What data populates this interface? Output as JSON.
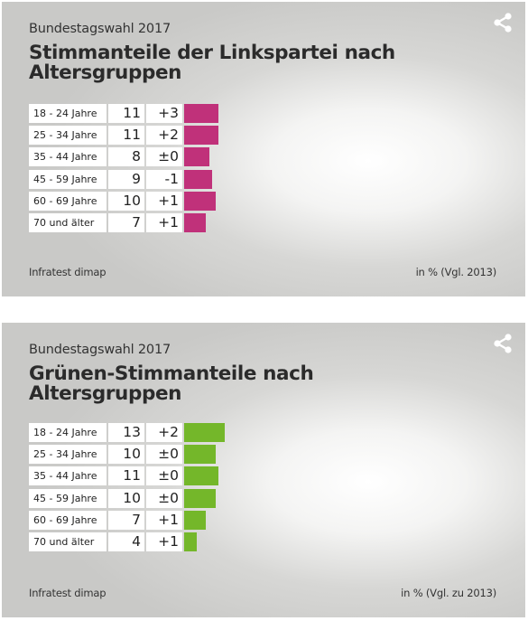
{
  "charts": [
    {
      "subtitle": "Bundestagswahl 2017",
      "title": "Stimmanteile der Linkspartei nach Altersgruppen",
      "source": "Infratest dimap",
      "note": "in % (Vgl. 2013)",
      "icon": "share-icon"
    },
    {
      "subtitle": "Bundestagswahl 2017",
      "title": "Grünen-Stimmanteile nach Altersgruppen",
      "source": "Infratest dimap",
      "note": "in % (Vgl. zu 2013)",
      "icon": "share-icon"
    }
  ],
  "chart_data": [
    {
      "type": "bar",
      "title": "Stimmanteile der Linkspartei nach Altersgruppen",
      "categories": [
        "18 - 24 Jahre",
        "25 - 34 Jahre",
        "35 - 44 Jahre",
        "45 - 59 Jahre",
        "60 - 69 Jahre",
        "70 und älter"
      ],
      "values": [
        11,
        11,
        8,
        9,
        10,
        7
      ],
      "changes": [
        "+3",
        "+2",
        "±0",
        "-1",
        "+1",
        "+1"
      ],
      "color": "#c0317a",
      "orientation": "horizontal"
    },
    {
      "type": "bar",
      "title": "Grünen-Stimmanteile nach Altersgruppen",
      "categories": [
        "18 - 24 Jahre",
        "25 - 34 Jahre",
        "35 - 44 Jahre",
        "45 - 59 Jahre",
        "60 - 69 Jahre",
        "70 und älter"
      ],
      "values": [
        13,
        10,
        11,
        10,
        7,
        4
      ],
      "changes": [
        "+2",
        "±0",
        "±0",
        "±0",
        "+1",
        "+1"
      ],
      "color": "#74b72a",
      "orientation": "horizontal"
    }
  ]
}
